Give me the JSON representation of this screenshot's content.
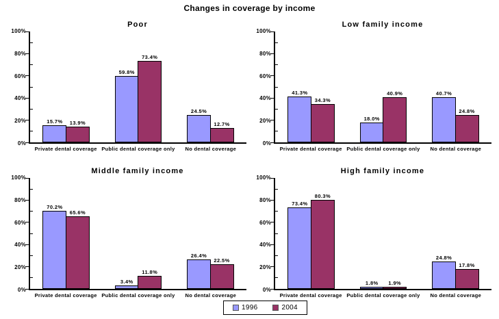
{
  "page_title": "Changes in coverage by income",
  "colors": {
    "series_1996": "#9999FF",
    "series_2004": "#993366",
    "axis": "#000000",
    "background": "#FFFFFF"
  },
  "legend": {
    "items": [
      {
        "label": "1996",
        "color": "#9999FF"
      },
      {
        "label": "2004",
        "color": "#993366"
      }
    ]
  },
  "chart_data": [
    {
      "type": "bar",
      "title": "Poor",
      "categories": [
        "Private dental coverage",
        "Public dental coverage only",
        "No dental coverage"
      ],
      "series": [
        {
          "name": "1996",
          "color": "#9999FF",
          "values": [
            15.7,
            59.8,
            24.5
          ]
        },
        {
          "name": "2004",
          "color": "#993366",
          "values": [
            13.9,
            73.4,
            12.7
          ]
        }
      ],
      "ylim": [
        0,
        100
      ],
      "ytick_labels": [
        "0%",
        "20%",
        "40%",
        "60%",
        "80%",
        "100%"
      ],
      "grid": false,
      "value_labels": "shown above each bar as percent with one decimal"
    },
    {
      "type": "bar",
      "title": "Low family income",
      "categories": [
        "Private dental coverage",
        "Public dental coverage only",
        "No dental coverage"
      ],
      "series": [
        {
          "name": "1996",
          "color": "#9999FF",
          "values": [
            41.3,
            18.0,
            40.7
          ]
        },
        {
          "name": "2004",
          "color": "#993366",
          "values": [
            34.3,
            40.9,
            24.8
          ]
        }
      ],
      "ylim": [
        0,
        100
      ],
      "ytick_labels": [
        "0%",
        "20%",
        "40%",
        "60%",
        "80%",
        "100%"
      ],
      "grid": false,
      "value_labels": "shown above each bar as percent with one decimal"
    },
    {
      "type": "bar",
      "title": "Middle family income",
      "categories": [
        "Private dental coverage",
        "Public dental coverage only",
        "No dental coverage"
      ],
      "series": [
        {
          "name": "1996",
          "color": "#9999FF",
          "values": [
            70.2,
            3.4,
            26.4
          ]
        },
        {
          "name": "2004",
          "color": "#993366",
          "values": [
            65.6,
            11.8,
            22.5
          ]
        }
      ],
      "ylim": [
        0,
        100
      ],
      "ytick_labels": [
        "0%",
        "20%",
        "40%",
        "60%",
        "80%",
        "100%"
      ],
      "grid": false,
      "value_labels": "shown above each bar as percent with one decimal"
    },
    {
      "type": "bar",
      "title": "High family income",
      "categories": [
        "Private dental coverage",
        "Public dental coverage only",
        "No dental coverage"
      ],
      "series": [
        {
          "name": "1996",
          "color": "#9999FF",
          "values": [
            73.4,
            1.8,
            24.8
          ]
        },
        {
          "name": "2004",
          "color": "#993366",
          "values": [
            80.3,
            1.9,
            17.8
          ]
        }
      ],
      "ylim": [
        0,
        100
      ],
      "ytick_labels": [
        "0%",
        "20%",
        "40%",
        "60%",
        "80%",
        "100%"
      ],
      "grid": false,
      "value_labels": "shown above each bar as percent with one decimal"
    }
  ]
}
